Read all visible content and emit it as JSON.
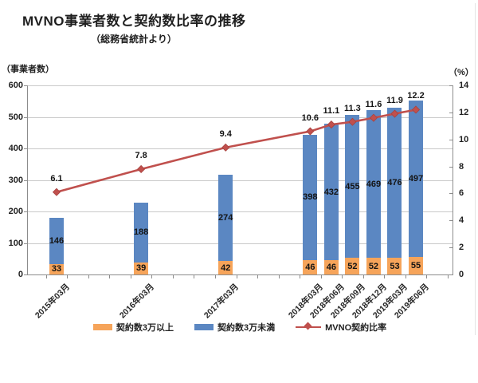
{
  "title": "MVNO事業者数と契約数比率の推移",
  "subtitle": "（総務省統計より）",
  "left_axis": {
    "unit_label": "（事業者数）",
    "ticks": [
      600,
      500,
      400,
      300,
      200,
      100,
      0
    ],
    "min": 0,
    "max": 600
  },
  "right_axis": {
    "unit_label": "（%）",
    "ticks": [
      14,
      12,
      10,
      8,
      6,
      4,
      2,
      0
    ],
    "min": 0,
    "max": 14
  },
  "legend": [
    {
      "label": "契約数3万以上",
      "type": "bar",
      "color": "#f6a45a"
    },
    {
      "label": "契約数3万未満",
      "type": "bar",
      "color": "#5b87c2"
    },
    {
      "label": "MVNO契約比率",
      "type": "line",
      "color": "#c0504d"
    }
  ],
  "chart_data": {
    "type": "bar",
    "subtype": "stacked-bar-with-line-combo",
    "title": "MVNO事業者数と契約数比率の推移",
    "subtitle": "（総務省統計より）",
    "categories": [
      "2015年03月",
      "2016年03月",
      "2017年03月",
      "2018年03月",
      "2018年06月",
      "2018年09月",
      "2018年12月",
      "2019年03月",
      "2019年06月"
    ],
    "quarter_offsets": [
      0,
      4,
      8,
      12,
      13,
      14,
      15,
      16,
      17
    ],
    "series": [
      {
        "name": "契約数3万以上",
        "type": "bar",
        "stacked": true,
        "axis": "left",
        "color": "#f6a45a",
        "values": [
          33,
          39,
          42,
          46,
          46,
          52,
          52,
          53,
          55
        ]
      },
      {
        "name": "契約数3万未満",
        "type": "bar",
        "stacked": true,
        "axis": "left",
        "color": "#5b87c2",
        "values": [
          146,
          188,
          274,
          398,
          432,
          455,
          469,
          476,
          497
        ]
      },
      {
        "name": "MVNO契約比率",
        "type": "line",
        "axis": "right",
        "color": "#c0504d",
        "marker": "diamond",
        "values": [
          6.1,
          7.8,
          9.4,
          10.6,
          11.1,
          11.3,
          11.6,
          11.9,
          12.2
        ]
      }
    ],
    "xlabel": "",
    "ylabel_left": "（事業者数）",
    "ylabel_right": "（%）",
    "left_ylim": [
      0,
      600
    ],
    "right_ylim": [
      0,
      14
    ],
    "grid": true,
    "legend_position": "bottom"
  },
  "colors": {
    "grid": "#c9c9c9",
    "axis": "#8c8c8c",
    "bar_orange": "#f6a45a",
    "bar_blue": "#5b87c2",
    "line_red": "#c0504d"
  }
}
